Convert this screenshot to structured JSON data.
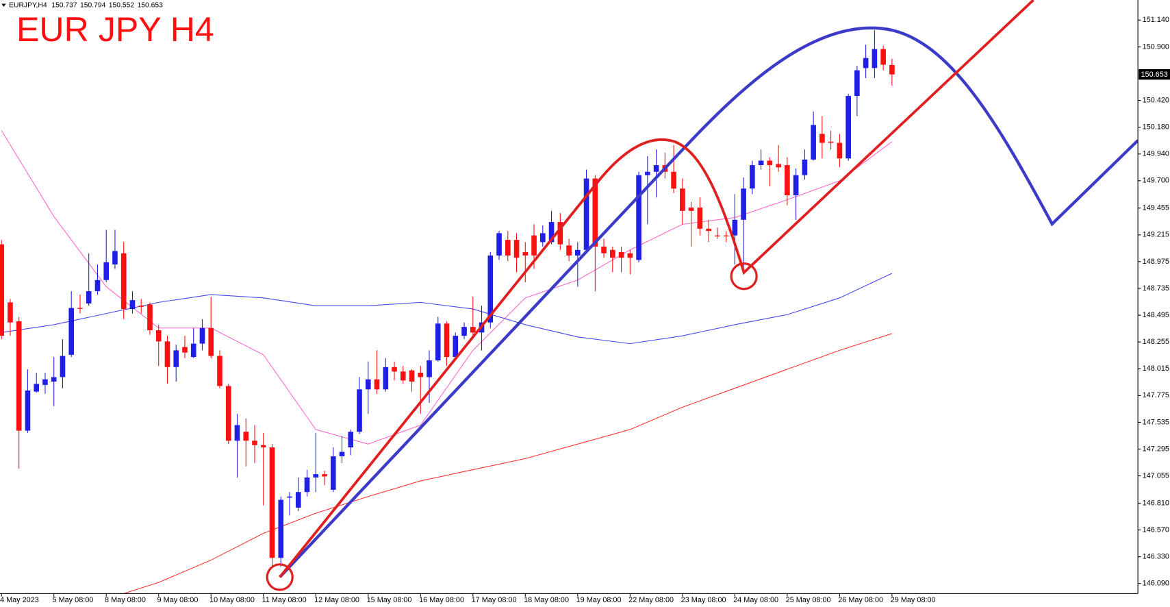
{
  "chart_data": {
    "type": "candlestick",
    "symbol": "EURJPY,H4",
    "title": "EUR JPY H4",
    "up_color": "#1f1fe6",
    "down_color": "#ff1010",
    "categories": [
      "4 May 2023",
      null,
      null,
      null,
      null,
      null,
      "5 May 08:00",
      null,
      null,
      null,
      null,
      null,
      "8 May 08:00",
      null,
      null,
      null,
      null,
      null,
      "9 May 08:00",
      null,
      null,
      null,
      null,
      null,
      "10 May 08:00",
      null,
      null,
      null,
      null,
      null,
      "11 May 08:00",
      null,
      null,
      null,
      null,
      null,
      "12 May 08:00",
      null,
      null,
      null,
      null,
      null,
      "15 May 08:00",
      null,
      null,
      null,
      null,
      null,
      "16 May 08:00",
      null,
      null,
      null,
      null,
      null,
      "17 May 08:00",
      null,
      null,
      null,
      null,
      null,
      "18 May 08:00",
      null,
      null,
      null,
      null,
      null,
      "19 May 08:00",
      null,
      null,
      null,
      null,
      null,
      "22 May 08:00",
      null,
      null,
      null,
      null,
      null,
      "23 May 08:00",
      null,
      null,
      null,
      null,
      null,
      "24 May 08:00",
      null,
      null,
      null,
      null,
      null,
      "25 May 08:00",
      null,
      null,
      null,
      null,
      null,
      "26 May 08:00",
      null,
      null,
      null,
      null,
      null,
      "29 May 08:00"
    ],
    "open": [
      149.13,
      148.61,
      148.44,
      147.46,
      147.81,
      147.87,
      147.9,
      147.94,
      148.14,
      148.56,
      148.6,
      148.71,
      148.81,
      148.95,
      149.05,
      148.55,
      148.58,
      148.59,
      148.36,
      148.26,
      148.03,
      148.21,
      148.12,
      148.24,
      148.38,
      148.13,
      147.86,
      147.37,
      147.45,
      147.37,
      147.33,
      147.31,
      146.32,
      146.86,
      146.77,
      146.91,
      147.04,
      147.07,
      146.93,
      147.23,
      147.31,
      147.45,
      147.83,
      147.92,
      147.83,
      148.03,
      147.99,
      148.0,
      147.98,
      147.94,
      148.09,
      148.42,
      148.12,
      148.31,
      148.39,
      148.34,
      148.43,
      149.03,
      149.17,
      149.17,
      149.06,
      149.21,
      149.15,
      149.15,
      149.33,
      149.12,
      149.03,
      149.08,
      149.72,
      149.11,
      149.08,
      149.06,
      149.05,
      148.99,
      149.75,
      149.78,
      149.84,
      149.78,
      149.63,
      149.46,
      149.46,
      149.27,
      149.21,
      149.21,
      149.21,
      149.35,
      149.63,
      149.84,
      149.88,
      149.85,
      149.84,
      149.57,
      149.75,
      149.89,
      150.12,
      150.05,
      150.04,
      149.9,
      150.46,
      150.71,
      150.71,
      150.88,
      150.737
    ],
    "high": [
      149.17,
      148.64,
      148.48,
      148.01,
      147.98,
      147.98,
      148.12,
      148.28,
      148.71,
      148.68,
      149.05,
      148.95,
      149.26,
      149.26,
      149.15,
      148.71,
      148.64,
      148.61,
      148.41,
      148.31,
      148.23,
      148.31,
      148.38,
      148.46,
      148.66,
      148.18,
      147.88,
      147.61,
      147.57,
      147.51,
      147.44,
      147.34,
      146.87,
      146.91,
      147.04,
      147.11,
      147.44,
      147.1,
      147.31,
      147.41,
      147.47,
      147.94,
      148.08,
      148.18,
      148.11,
      148.08,
      148.04,
      148.01,
      148.04,
      148.18,
      148.48,
      148.44,
      148.34,
      148.43,
      148.66,
      148.58,
      149.06,
      149.25,
      149.25,
      149.23,
      149.15,
      149.31,
      149.3,
      149.43,
      149.41,
      149.18,
      149.15,
      149.8,
      149.75,
      149.18,
      149.11,
      149.11,
      149.08,
      149.78,
      149.92,
      149.98,
      149.95,
      150.02,
      149.72,
      149.51,
      149.55,
      149.35,
      149.28,
      149.25,
      149.58,
      149.73,
      149.88,
      149.98,
      149.91,
      150.02,
      149.91,
      149.81,
      149.98,
      150.32,
      150.28,
      150.15,
      150.12,
      150.48,
      150.73,
      150.92,
      151.05,
      150.91,
      150.794
    ],
    "low": [
      148.28,
      148.31,
      147.12,
      147.44,
      147.8,
      147.79,
      147.68,
      147.84,
      148.12,
      148.51,
      148.58,
      148.68,
      148.79,
      148.91,
      148.46,
      148.51,
      148.51,
      148.32,
      148.04,
      147.88,
      147.9,
      148.11,
      148.11,
      148.18,
      148.11,
      147.84,
      147.34,
      147.04,
      147.14,
      147.17,
      146.79,
      146.24,
      146.24,
      146.7,
      146.74,
      146.87,
      146.91,
      146.97,
      146.91,
      147.17,
      147.24,
      147.43,
      147.61,
      147.79,
      147.81,
      147.91,
      147.88,
      147.81,
      147.61,
      147.71,
      148.08,
      148.04,
      148.1,
      148.28,
      148.31,
      148.18,
      148.38,
      148.99,
      148.98,
      148.88,
      148.79,
      148.91,
      149.11,
      149.13,
      149.08,
      148.98,
      148.75,
      149.05,
      148.71,
      149.01,
      148.88,
      148.88,
      148.86,
      148.97,
      149.31,
      149.55,
      149.72,
      149.59,
      149.31,
      149.11,
      149.21,
      149.15,
      149.18,
      149.15,
      148.95,
      148.91,
      149.58,
      149.8,
      149.65,
      149.78,
      149.48,
      149.35,
      149.71,
      149.88,
      149.9,
      149.98,
      149.82,
      149.88,
      150.28,
      150.62,
      150.62,
      150.69,
      150.552
    ],
    "close": [
      148.31,
      148.43,
      147.46,
      147.82,
      147.88,
      147.92,
      147.94,
      148.13,
      148.56,
      148.56,
      148.71,
      148.81,
      148.97,
      149.07,
      148.55,
      148.63,
      148.57,
      148.36,
      148.26,
      148.03,
      148.18,
      148.16,
      148.24,
      148.38,
      148.13,
      147.86,
      147.37,
      147.51,
      147.37,
      147.33,
      147.31,
      146.32,
      146.84,
      146.87,
      146.91,
      147.04,
      147.07,
      147.05,
      147.23,
      147.27,
      147.45,
      147.83,
      147.92,
      147.83,
      148.03,
      147.99,
      147.91,
      147.9,
      147.94,
      148.09,
      148.42,
      148.12,
      148.31,
      148.39,
      148.34,
      148.43,
      149.03,
      149.23,
      149.03,
      149.01,
      149.03,
      149.03,
      149.23,
      149.33,
      149.13,
      149.03,
      149.08,
      149.72,
      149.11,
      149.05,
      149.01,
      149.01,
      149.01,
      149.75,
      149.78,
      149.84,
      149.78,
      149.63,
      149.43,
      149.43,
      149.27,
      149.25,
      149.21,
      149.21,
      149.35,
      149.63,
      149.84,
      149.88,
      149.84,
      149.82,
      149.57,
      149.75,
      149.89,
      150.2,
      150.04,
      150.04,
      149.9,
      150.46,
      150.69,
      150.8,
      150.88,
      150.74,
      150.653
    ],
    "indicators": [
      {
        "color": "#ff66cc",
        "x": [
          0,
          6,
          12,
          18,
          24,
          30,
          36,
          42,
          48,
          54,
          60,
          66,
          72,
          78,
          84,
          90,
          96,
          102
        ],
        "values": [
          150.15,
          149.38,
          148.75,
          148.38,
          148.38,
          148.14,
          147.47,
          147.34,
          147.51,
          148.18,
          148.65,
          148.81,
          149.08,
          149.31,
          149.37,
          149.53,
          149.7,
          150.05
        ]
      },
      {
        "color": "#4444ee",
        "x": [
          0,
          6,
          12,
          18,
          24,
          30,
          36,
          42,
          48,
          54,
          60,
          66,
          72,
          78,
          84,
          90,
          96,
          102
        ],
        "values": [
          148.34,
          148.41,
          148.51,
          148.61,
          148.68,
          148.65,
          148.58,
          148.58,
          148.61,
          148.55,
          148.41,
          148.3,
          148.24,
          148.31,
          148.41,
          148.5,
          148.65,
          148.87
        ]
      },
      {
        "color": "#ff3333",
        "x": [
          14,
          18,
          24,
          30,
          36,
          42,
          48,
          54,
          60,
          66,
          72,
          78,
          84,
          90,
          96,
          102
        ],
        "values": [
          146.0,
          146.1,
          146.3,
          146.54,
          146.72,
          146.87,
          147.01,
          147.11,
          147.21,
          147.34,
          147.47,
          147.67,
          147.84,
          148.01,
          148.18,
          148.33
        ]
      }
    ],
    "ylim": [
      146.0,
      151.32
    ],
    "yticks": [
      {
        "value": 151.14,
        "label": "151.140"
      },
      {
        "value": 150.9,
        "label": "150.900"
      },
      {
        "value": 150.42,
        "label": "150.420"
      },
      {
        "value": 150.18,
        "label": "150.180"
      },
      {
        "value": 149.94,
        "label": "149.940"
      },
      {
        "value": 149.7,
        "label": "149.700"
      },
      149.455,
      149.215,
      148.975,
      148.735,
      148.495,
      148.255,
      148.015,
      147.775,
      147.535,
      147.295,
      147.055,
      {
        "value": 146.81,
        "label": "146.810"
      },
      {
        "value": 146.57,
        "label": "146.570"
      },
      {
        "value": 146.33,
        "label": "146.330"
      },
      {
        "value": 146.09,
        "label": "146.090"
      }
    ]
  }
}
